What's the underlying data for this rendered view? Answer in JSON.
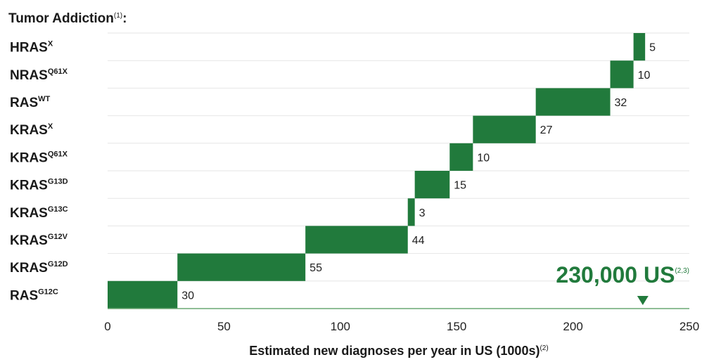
{
  "chart_data": {
    "type": "bar",
    "orientation": "horizontal-waterfall",
    "title": "Tumor Addiction",
    "title_sup": "(1)",
    "title_suffix": ":",
    "xlabel": "Estimated new diagnoses per year in US (1000s)",
    "xlabel_sup": "(2)",
    "xlim": [
      0,
      250
    ],
    "xticks": [
      0,
      50,
      100,
      150,
      200,
      250
    ],
    "grid": true,
    "bar_color": "#217a3c",
    "axis_color": "#6aa874",
    "rows": [
      {
        "base": "HRAS",
        "sup": "X",
        "value": 5
      },
      {
        "base": "NRAS",
        "sup": "Q61X",
        "value": 10
      },
      {
        "base": "RAS",
        "sup": "WT",
        "value": 32
      },
      {
        "base": "KRAS",
        "sup": "X",
        "value": 27
      },
      {
        "base": "KRAS",
        "sup": "Q61X",
        "value": 10
      },
      {
        "base": "KRAS",
        "sup": "G13D",
        "value": 15
      },
      {
        "base": "KRAS",
        "sup": "G13C",
        "value": 3
      },
      {
        "base": "KRAS",
        "sup": "G12V",
        "value": 44
      },
      {
        "base": "KRAS",
        "sup": "G12D",
        "value": 55
      },
      {
        "base": "RAS",
        "sup": "G12C",
        "value": 30
      }
    ],
    "annotation": {
      "text": "230,000 US",
      "sup": "(2,3)",
      "marker_x": 230,
      "color": "#217a3c"
    }
  }
}
